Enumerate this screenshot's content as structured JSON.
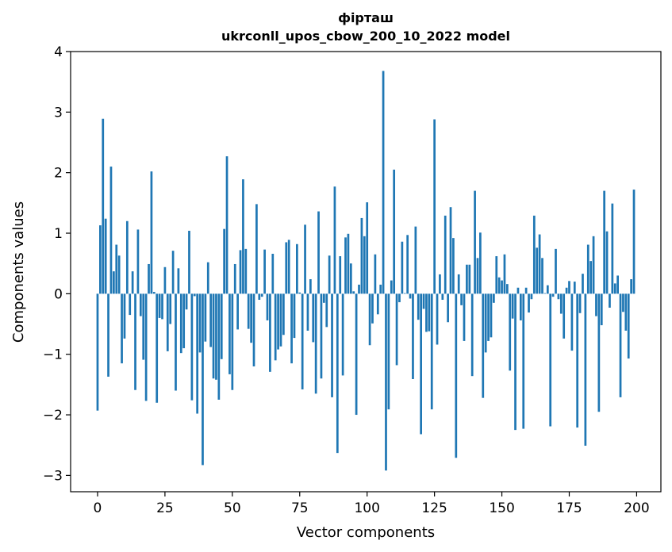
{
  "chart_data": {
    "type": "bar",
    "title": "фірташ",
    "subtitle": "ukrconll_upos_cbow_200_10_2022 model",
    "xlabel": "Vector components",
    "ylabel": "Components values",
    "xlim": [
      -10,
      209
    ],
    "ylim": [
      -3.27,
      4.0
    ],
    "xticks": [
      0,
      25,
      50,
      75,
      100,
      125,
      150,
      175,
      200
    ],
    "yticks": [
      -3,
      -2,
      -1,
      0,
      1,
      2,
      3,
      4
    ],
    "grid": false,
    "bar_color": "#1f77b4",
    "values": [
      -1.93,
      1.13,
      2.89,
      1.24,
      -1.37,
      2.1,
      0.37,
      0.81,
      0.63,
      -1.15,
      -0.74,
      1.2,
      -0.35,
      0.37,
      -1.59,
      1.06,
      -0.37,
      -1.09,
      -1.77,
      0.49,
      2.02,
      0.03,
      -1.8,
      -0.4,
      -0.42,
      0.44,
      -0.95,
      -0.5,
      0.71,
      -1.6,
      0.42,
      -0.98,
      -0.9,
      -0.26,
      1.04,
      -1.76,
      -0.04,
      -1.98,
      -0.97,
      -2.83,
      -0.79,
      0.52,
      -0.88,
      -1.4,
      -1.42,
      -1.75,
      -1.08,
      1.07,
      2.27,
      -1.33,
      -1.59,
      0.49,
      -0.59,
      0.72,
      1.89,
      0.74,
      -0.58,
      -0.81,
      -1.2,
      1.48,
      -0.1,
      -0.05,
      0.73,
      -0.44,
      -1.29,
      0.66,
      -1.1,
      -0.92,
      -0.87,
      -0.68,
      0.85,
      0.89,
      -1.15,
      -0.73,
      0.82,
      0.02,
      -1.58,
      1.14,
      -0.61,
      0.24,
      -0.8,
      -1.65,
      1.36,
      -1.4,
      -0.15,
      -0.55,
      0.63,
      -1.71,
      1.77,
      -2.63,
      0.62,
      -1.35,
      0.93,
      0.99,
      0.5,
      0.04,
      -2.0,
      0.15,
      1.25,
      0.95,
      1.51,
      -0.85,
      -0.49,
      0.65,
      -0.34,
      0.15,
      3.68,
      -2.92,
      -1.91,
      0.22,
      2.05,
      -1.18,
      -0.14,
      0.86,
      0.01,
      0.97,
      -0.08,
      -1.41,
      1.11,
      -0.43,
      -2.32,
      -0.25,
      -0.63,
      -0.62,
      -1.91,
      2.88,
      -0.84,
      0.32,
      -0.1,
      1.29,
      -0.47,
      1.43,
      0.92,
      -2.71,
      0.32,
      -0.19,
      -0.78,
      0.48,
      0.48,
      -1.36,
      1.7,
      0.59,
      1.01,
      -1.72,
      -0.97,
      -0.78,
      -0.72,
      -0.15,
      0.62,
      0.27,
      0.22,
      0.65,
      0.16,
      -1.27,
      -0.41,
      -2.25,
      0.1,
      -0.44,
      -2.23,
      0.1,
      -0.31,
      -0.09,
      1.29,
      0.76,
      0.98,
      0.59,
      0.01,
      0.14,
      -2.19,
      -0.05,
      0.74,
      -0.09,
      -0.33,
      -0.74,
      0.1,
      0.21,
      -0.94,
      0.2,
      -2.21,
      -0.32,
      0.33,
      -2.51,
      0.81,
      0.54,
      0.95,
      -0.37,
      -1.95,
      -0.52,
      1.7,
      1.03,
      -0.23,
      1.49,
      0.17,
      0.3,
      -1.71,
      -0.3,
      -0.61,
      -1.07,
      0.24,
      1.72
    ]
  }
}
